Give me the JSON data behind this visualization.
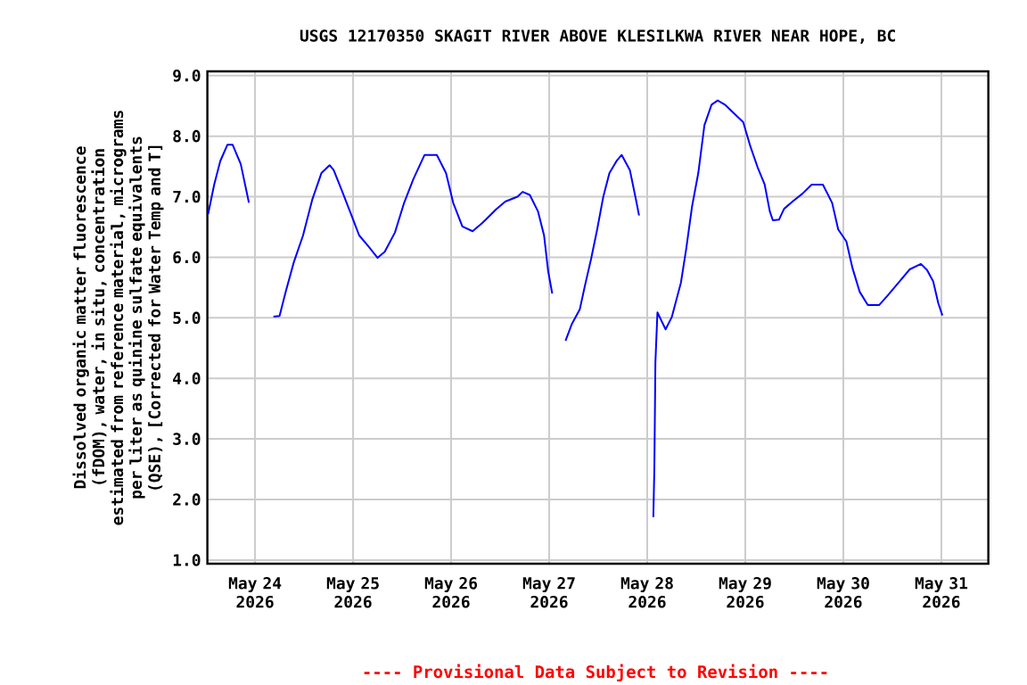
{
  "chart_data": {
    "type": "line",
    "title": "USGS 12170350 SKAGIT RIVER ABOVE KLESILKWA RIVER NEAR HOPE, BC",
    "ylabel": "Dissolved organic matter fluorescence (fDOM), water, in situ, concentration estimated from reference material, micrograms per liter as quinine sulfate equivalents (QSE), [Corrected for Water Temp and T]",
    "annotations": [
      "---- Provisional Data Subject to Revision ----"
    ],
    "x": [
      "2026-05-23T12:30",
      "2026-05-23T14:00",
      "2026-05-23T15:30",
      "2026-05-23T17:15",
      "2026-05-23T18:30",
      "2026-05-23T20:30",
      "2026-05-23T22:30",
      "2026-05-24T01:30",
      "2026-05-24T04:30",
      "2026-05-24T06:00",
      "2026-05-24T07:30",
      "2026-05-24T09:30",
      "2026-05-24T11:45",
      "2026-05-24T14:00",
      "2026-05-24T16:15",
      "2026-05-24T18:15",
      "2026-05-24T19:15",
      "2026-05-24T21:15",
      "2026-05-24T23:30",
      "2026-05-25T01:30",
      "2026-05-25T03:45",
      "2026-05-25T06:00",
      "2026-05-25T07:45",
      "2026-05-25T10:15",
      "2026-05-25T12:30",
      "2026-05-25T14:45",
      "2026-05-25T17:30",
      "2026-05-25T20:30",
      "2026-05-25T22:45",
      "2026-05-26T00:30",
      "2026-05-26T02:45",
      "2026-05-26T05:15",
      "2026-05-26T07:30",
      "2026-05-26T08:45",
      "2026-05-26T11:00",
      "2026-05-26T13:15",
      "2026-05-26T16:15",
      "2026-05-26T17:30",
      "2026-05-26T19:15",
      "2026-05-26T21:15",
      "2026-05-26T22:45",
      "2026-05-26T23:45",
      "2026-05-27T00:45",
      "2026-05-27T02:30",
      "2026-05-27T04:00",
      "2026-05-27T05:30",
      "2026-05-27T07:30",
      "2026-05-27T08:45",
      "2026-05-27T10:15",
      "2026-05-27T11:45",
      "2026-05-27T13:15",
      "2026-05-27T14:45",
      "2026-05-27T16:30",
      "2026-05-27T17:45",
      "2026-05-27T19:45",
      "2026-05-27T21:15",
      "2026-05-27T22:00",
      "2026-05-28T00:00",
      "2026-05-28T01:30",
      "2026-05-28T01:45",
      "2026-05-28T02:00",
      "2026-05-28T02:30",
      "2026-05-28T04:30",
      "2026-05-28T06:00",
      "2026-05-28T08:15",
      "2026-05-28T09:30",
      "2026-05-28T11:00",
      "2026-05-28T12:30",
      "2026-05-28T14:00",
      "2026-05-28T15:45",
      "2026-05-28T17:15",
      "2026-05-28T19:00",
      "2026-05-28T23:30",
      "2026-05-29T01:15",
      "2026-05-29T03:00",
      "2026-05-29T04:45",
      "2026-05-29T06:00",
      "2026-05-29T06:45",
      "2026-05-29T08:15",
      "2026-05-29T09:30",
      "2026-05-29T11:45",
      "2026-05-29T14:00",
      "2026-05-29T16:15",
      "2026-05-29T19:00",
      "2026-05-29T21:15",
      "2026-05-29T22:45",
      "2026-05-30T00:45",
      "2026-05-30T02:15",
      "2026-05-30T04:00",
      "2026-05-30T06:00",
      "2026-05-30T08:45",
      "2026-05-30T10:45",
      "2026-05-30T13:45",
      "2026-05-30T16:15",
      "2026-05-30T19:00",
      "2026-05-30T20:30",
      "2026-05-30T22:00",
      "2026-05-30T23:15",
      "2026-05-31T00:15"
    ],
    "series": [
      {
        "color": "#0000ff",
        "values": [
          6.71,
          7.2,
          7.59,
          7.86,
          7.86,
          7.54,
          6.9,
          null,
          5.02,
          5.03,
          5.43,
          5.92,
          6.36,
          6.95,
          7.39,
          7.52,
          7.44,
          7.1,
          6.71,
          6.36,
          6.18,
          5.99,
          6.09,
          6.41,
          6.9,
          7.29,
          7.69,
          7.69,
          7.39,
          6.9,
          6.51,
          6.43,
          6.56,
          6.64,
          6.79,
          6.92,
          7.0,
          7.08,
          7.03,
          6.76,
          6.36,
          5.77,
          5.4,
          null,
          4.62,
          4.89,
          5.14,
          5.53,
          5.97,
          6.46,
          7.0,
          7.39,
          7.59,
          7.69,
          7.44,
          6.95,
          6.69,
          null,
          1.71,
          2.54,
          4.26,
          5.09,
          4.81,
          5.01,
          5.58,
          6.12,
          6.85,
          7.39,
          8.18,
          8.52,
          8.59,
          8.52,
          8.23,
          7.83,
          7.49,
          7.2,
          6.76,
          6.61,
          6.62,
          6.8,
          6.93,
          7.05,
          7.2,
          7.2,
          6.9,
          6.46,
          6.26,
          5.82,
          5.43,
          5.21,
          5.21,
          5.36,
          5.6,
          5.8,
          5.89,
          5.79,
          5.6,
          5.24,
          5.04
        ]
      }
    ],
    "xlim": [
      "2026-05-23T12:20",
      "2026-05-31T11:30"
    ],
    "ylim": [
      0.94,
      9.07
    ],
    "xticks": [
      {
        "value": "2026-05-24",
        "label": "May 24 2026"
      },
      {
        "value": "2026-05-25",
        "label": "May 25 2026"
      },
      {
        "value": "2026-05-26",
        "label": "May 26 2026"
      },
      {
        "value": "2026-05-27",
        "label": "May 27 2026"
      },
      {
        "value": "2026-05-28",
        "label": "May 28 2026"
      },
      {
        "value": "2026-05-29",
        "label": "May 29 2026"
      },
      {
        "value": "2026-05-30",
        "label": "May 30 2026"
      },
      {
        "value": "2026-05-31",
        "label": "May 31 2026"
      }
    ],
    "yticks": [
      {
        "value": 1,
        "label": "1.0"
      },
      {
        "value": 2,
        "label": "2.0"
      },
      {
        "value": 3,
        "label": "3.0"
      },
      {
        "value": 4,
        "label": "4.0"
      },
      {
        "value": 5,
        "label": "5.0"
      },
      {
        "value": 6,
        "label": "6.0"
      },
      {
        "value": 7,
        "label": "7.0"
      },
      {
        "value": 8,
        "label": "8.0"
      },
      {
        "value": 9,
        "label": "9.0"
      }
    ],
    "grid": true,
    "marker": "none",
    "line_style": "solid"
  }
}
